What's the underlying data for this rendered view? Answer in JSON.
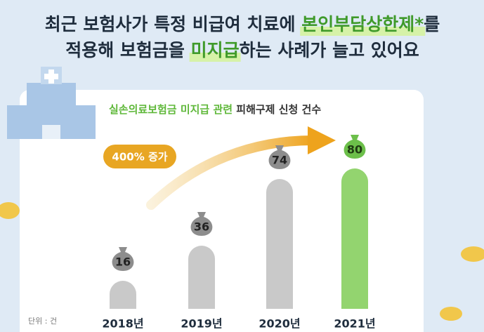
{
  "chart_data": {
    "type": "bar",
    "title_lines": [
      [
        "최근 보험사가 특정 비급여 치료에 ",
        "본인부담상한제*",
        "를"
      ],
      [
        "적용해 보험금을 ",
        "미지급",
        "하는 사례가 늘고 있어요"
      ]
    ],
    "subtitle_parts": [
      "실손의료보험금 미지급 관련 ",
      "피해구제 신청 건수"
    ],
    "annotation": "400% 증가",
    "unit": "단위 : 건",
    "categories": [
      "2018년",
      "2019년",
      "2020년",
      "2021년"
    ],
    "values": [
      16,
      36,
      74,
      80
    ],
    "colors": [
      "#c9c9c9",
      "#c9c9c9",
      "#c9c9c9",
      "#93d46f"
    ]
  }
}
